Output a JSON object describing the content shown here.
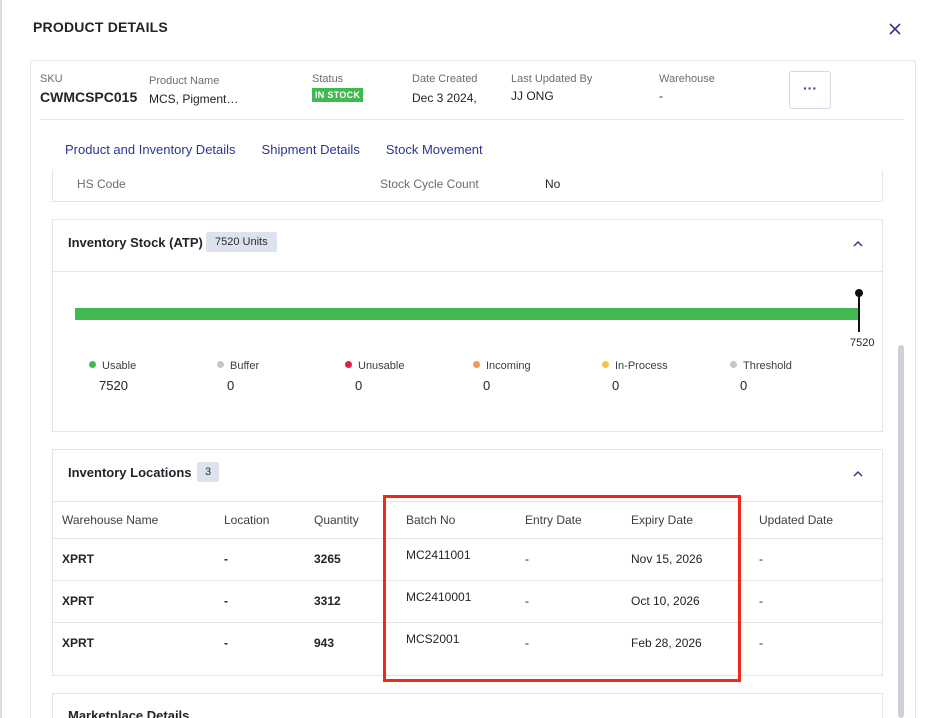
{
  "modal": {
    "title": "PRODUCT DETAILS",
    "close_icon": "close-icon"
  },
  "header": {
    "sku": {
      "label": "SKU",
      "value": "CWMCSPC015"
    },
    "product_name": {
      "label": "Product Name",
      "value": "MCS, Pigment…"
    },
    "status": {
      "label": "Status",
      "value": "IN STOCK",
      "color": "#3fb950"
    },
    "date_created": {
      "label": "Date Created",
      "value": "Dec 3 2024,"
    },
    "last_updated_by": {
      "label": "Last Updated By",
      "value": "JJ ONG"
    },
    "warehouse": {
      "label": "Warehouse",
      "value": "-"
    },
    "more_button": "···"
  },
  "tabs": [
    {
      "label": "Product and Inventory Details"
    },
    {
      "label": "Shipment Details"
    },
    {
      "label": "Stock Movement"
    }
  ],
  "hs_row": {
    "hs_code_label": "HS Code",
    "stock_cycle_label": "Stock Cycle Count",
    "stock_cycle_value": "No"
  },
  "inventory_stock": {
    "title": "Inventory Stock (ATP)",
    "badge": "7520 Units",
    "bar_max_label": "7520",
    "bar_color": "#3fb950",
    "legend": [
      {
        "label": "Usable",
        "value": "7520",
        "color": "#3fb950"
      },
      {
        "label": "Buffer",
        "value": "0",
        "color": "#c4c6cc"
      },
      {
        "label": "Unusable",
        "value": "0",
        "color": "#e5203a"
      },
      {
        "label": "Incoming",
        "value": "0",
        "color": "#f59a55"
      },
      {
        "label": "In-Process",
        "value": "0",
        "color": "#f5c542"
      },
      {
        "label": "Threshold",
        "value": "0",
        "color": "#c4c6cc"
      }
    ]
  },
  "inventory_locations": {
    "title": "Inventory Locations",
    "count": "3",
    "columns": [
      "Warehouse Name",
      "Location",
      "Quantity",
      "Batch No",
      "Entry Date",
      "Expiry Date",
      "Updated Date"
    ],
    "rows": [
      [
        "XPRT",
        "-",
        "3265",
        "MC2411001",
        "-",
        "Nov 15, 2026",
        "-"
      ],
      [
        "XPRT",
        "-",
        "3312",
        "MC2410001",
        "-",
        "Oct 10, 2026",
        "-"
      ],
      [
        "XPRT",
        "-",
        "943",
        "MCS2001",
        "-",
        "Feb 28, 2026",
        "-"
      ]
    ]
  },
  "marketplace": {
    "title": "Marketplace Details"
  },
  "annotation_color": "#f02a1b"
}
